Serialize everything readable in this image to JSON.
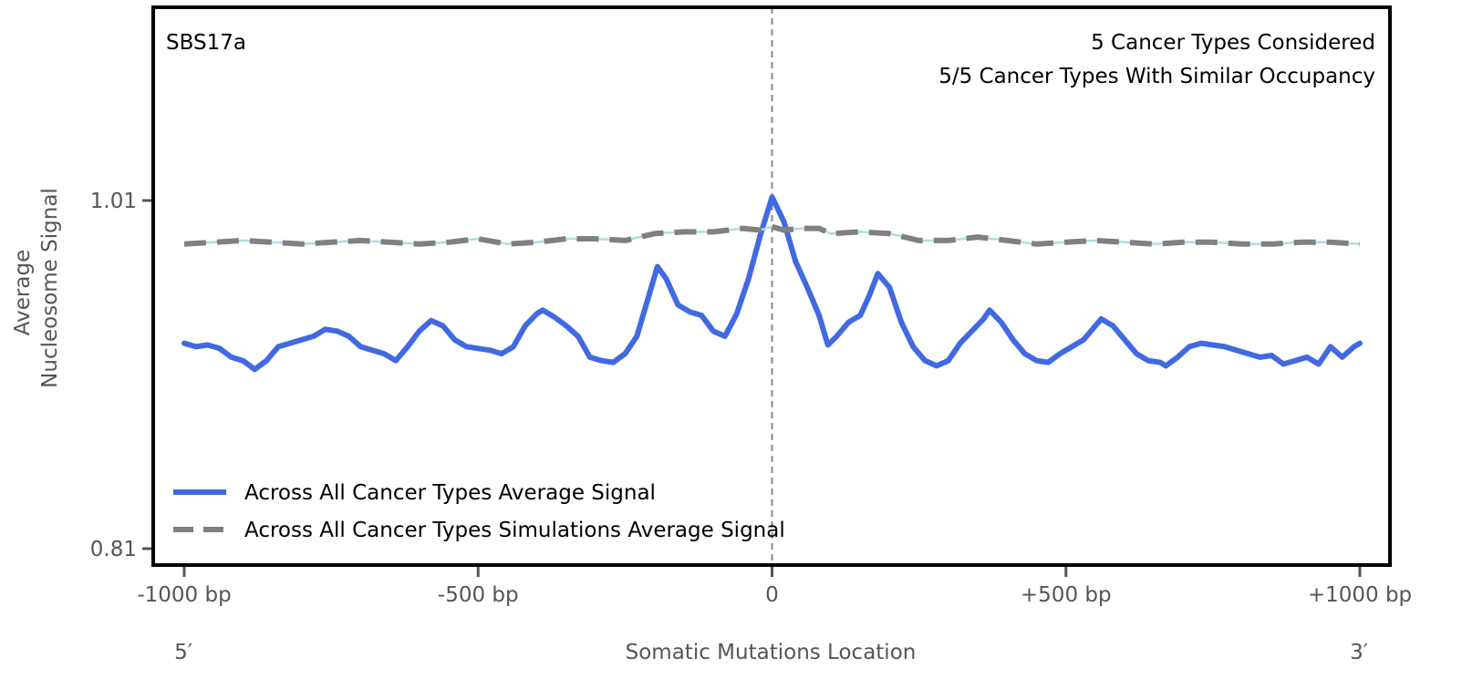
{
  "chart_data": {
    "type": "line",
    "title": "",
    "signature_label": "SBS17a",
    "annotations": [
      "5 Cancer Types Considered",
      "5/5 Cancer Types With Similar Occupancy"
    ],
    "xlabel": "Somatic Mutations Location",
    "ylabel_lines": [
      "Average",
      "Nucleosome Signal"
    ],
    "xlim": [
      -1000,
      1000
    ],
    "ylim": [
      0.81,
      1.01
    ],
    "x_ticks": [
      {
        "value": -1000,
        "label": "-1000 bp"
      },
      {
        "value": -500,
        "label": "-500 bp"
      },
      {
        "value": 0,
        "label": "0"
      },
      {
        "value": 500,
        "label": "+500 bp"
      },
      {
        "value": 1000,
        "label": "+1000 bp"
      }
    ],
    "y_ticks": [
      {
        "value": 1.01,
        "label": "1.01"
      },
      {
        "value": 0.81,
        "label": "0.81"
      }
    ],
    "end_labels": {
      "left": "5′",
      "right": "3′"
    },
    "vline_x": 0,
    "grid": false,
    "legend_position": "lower-left",
    "series": [
      {
        "name": "Across All Cancer Types Average Signal",
        "color": "#4169e1",
        "style": "solid",
        "x": [
          -1000,
          -980,
          -960,
          -940,
          -920,
          -900,
          -880,
          -860,
          -840,
          -820,
          -800,
          -780,
          -760,
          -740,
          -720,
          -700,
          -680,
          -660,
          -640,
          -620,
          -600,
          -580,
          -560,
          -540,
          -520,
          -500,
          -480,
          -460,
          -440,
          -420,
          -400,
          -390,
          -370,
          -350,
          -330,
          -310,
          -290,
          -270,
          -250,
          -230,
          -210,
          -195,
          -180,
          -160,
          -140,
          -120,
          -100,
          -80,
          -60,
          -40,
          -20,
          0,
          20,
          40,
          60,
          80,
          95,
          110,
          130,
          150,
          165,
          180,
          200,
          220,
          240,
          260,
          280,
          300,
          320,
          340,
          360,
          370,
          390,
          410,
          430,
          450,
          470,
          490,
          510,
          530,
          550,
          560,
          580,
          600,
          620,
          640,
          660,
          670,
          690,
          710,
          730,
          750,
          770,
          790,
          810,
          830,
          850,
          870,
          890,
          910,
          930,
          950,
          970,
          990,
          1000
        ],
        "values": [
          0.928,
          0.926,
          0.927,
          0.925,
          0.92,
          0.918,
          0.913,
          0.918,
          0.926,
          0.928,
          0.93,
          0.932,
          0.936,
          0.935,
          0.932,
          0.926,
          0.924,
          0.922,
          0.918,
          0.926,
          0.935,
          0.941,
          0.938,
          0.93,
          0.926,
          0.925,
          0.924,
          0.922,
          0.926,
          0.938,
          0.945,
          0.947,
          0.943,
          0.938,
          0.932,
          0.92,
          0.918,
          0.917,
          0.922,
          0.932,
          0.955,
          0.972,
          0.965,
          0.95,
          0.946,
          0.944,
          0.935,
          0.932,
          0.945,
          0.965,
          0.99,
          1.012,
          0.998,
          0.975,
          0.96,
          0.944,
          0.927,
          0.932,
          0.94,
          0.944,
          0.955,
          0.968,
          0.96,
          0.94,
          0.926,
          0.918,
          0.915,
          0.918,
          0.928,
          0.935,
          0.942,
          0.947,
          0.94,
          0.93,
          0.922,
          0.918,
          0.917,
          0.922,
          0.926,
          0.93,
          0.938,
          0.942,
          0.938,
          0.93,
          0.922,
          0.918,
          0.917,
          0.915,
          0.92,
          0.926,
          0.928,
          0.927,
          0.926,
          0.924,
          0.922,
          0.92,
          0.921,
          0.916,
          0.918,
          0.92,
          0.916,
          0.926,
          0.92,
          0.926,
          0.928
        ]
      },
      {
        "name": "Across All Cancer Types Simulations Average Signal",
        "color": "#808080",
        "style": "dashed",
        "x": [
          -1000,
          -950,
          -900,
          -850,
          -800,
          -750,
          -700,
          -650,
          -600,
          -550,
          -500,
          -450,
          -400,
          -350,
          -300,
          -250,
          -200,
          -150,
          -100,
          -50,
          -20,
          0,
          20,
          50,
          80,
          100,
          150,
          200,
          250,
          300,
          350,
          400,
          450,
          500,
          550,
          600,
          650,
          700,
          750,
          800,
          850,
          900,
          950,
          1000
        ],
        "values": [
          0.985,
          0.986,
          0.987,
          0.986,
          0.985,
          0.986,
          0.987,
          0.986,
          0.985,
          0.986,
          0.988,
          0.985,
          0.986,
          0.988,
          0.988,
          0.987,
          0.991,
          0.992,
          0.992,
          0.994,
          0.993,
          0.995,
          0.993,
          0.994,
          0.994,
          0.991,
          0.992,
          0.991,
          0.987,
          0.987,
          0.989,
          0.987,
          0.985,
          0.986,
          0.987,
          0.986,
          0.985,
          0.986,
          0.986,
          0.985,
          0.985,
          0.986,
          0.986,
          0.985
        ]
      }
    ]
  }
}
